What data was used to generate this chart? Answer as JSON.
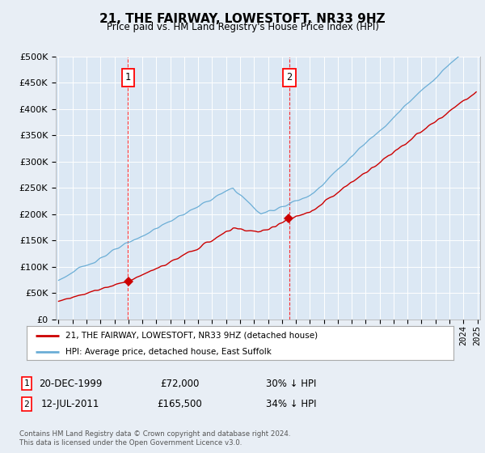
{
  "title": "21, THE FAIRWAY, LOWESTOFT, NR33 9HZ",
  "subtitle": "Price paid vs. HM Land Registry's House Price Index (HPI)",
  "background_color": "#e8eef5",
  "plot_bg_color": "#dce8f4",
  "sale1_date": 1999.97,
  "sale1_price": 72000,
  "sale1_label": "1",
  "sale2_date": 2011.53,
  "sale2_price": 165500,
  "sale2_label": "2",
  "hpi_color": "#6baed6",
  "prop_color": "#cc0000",
  "legend_line1": "21, THE FAIRWAY, LOWESTOFT, NR33 9HZ (detached house)",
  "legend_line2": "HPI: Average price, detached house, East Suffolk",
  "table_row1": [
    "1",
    "20-DEC-1999",
    "£72,000",
    "30% ↓ HPI"
  ],
  "table_row2": [
    "2",
    "12-JUL-2011",
    "£165,500",
    "34% ↓ HPI"
  ],
  "footnote1": "Contains HM Land Registry data © Crown copyright and database right 2024.",
  "footnote2": "This data is licensed under the Open Government Licence v3.0.",
  "ylim": [
    0,
    500000
  ],
  "yticks": [
    0,
    50000,
    100000,
    150000,
    200000,
    250000,
    300000,
    350000,
    400000,
    450000,
    500000
  ],
  "xlim_start": 1994.8,
  "xlim_end": 2025.2
}
